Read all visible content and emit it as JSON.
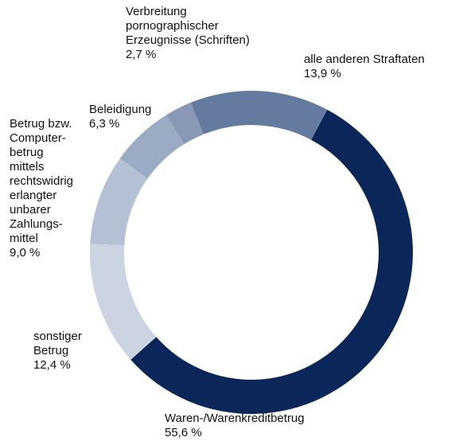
{
  "chart_data": {
    "type": "donut",
    "categories": [
      "Waren-/Warenkreditbetrug",
      "sonstiger\nBetrug",
      "Betrug bzw.\nComputer-\nbetrug\nmittels\nrechtswidrig\nerlangter\nunbarer\nZahlungs-\nmittel",
      "Beleidigung",
      "Verbreitung\npornographischer\nErzeugnisse (Schriften)",
      "alle anderen Straftaten"
    ],
    "values": [
      55.6,
      12.4,
      9.0,
      6.3,
      2.7,
      13.9
    ],
    "value_labels": [
      "55,6 %",
      "12,4 %",
      "9,0 %",
      "6,3 %",
      "2,7 %",
      "13,9 %"
    ],
    "colors": [
      "#0b2659",
      "#ccd4e1",
      "#b4c0d3",
      "#9cabc4",
      "#8898b6",
      "#647a9f"
    ]
  }
}
